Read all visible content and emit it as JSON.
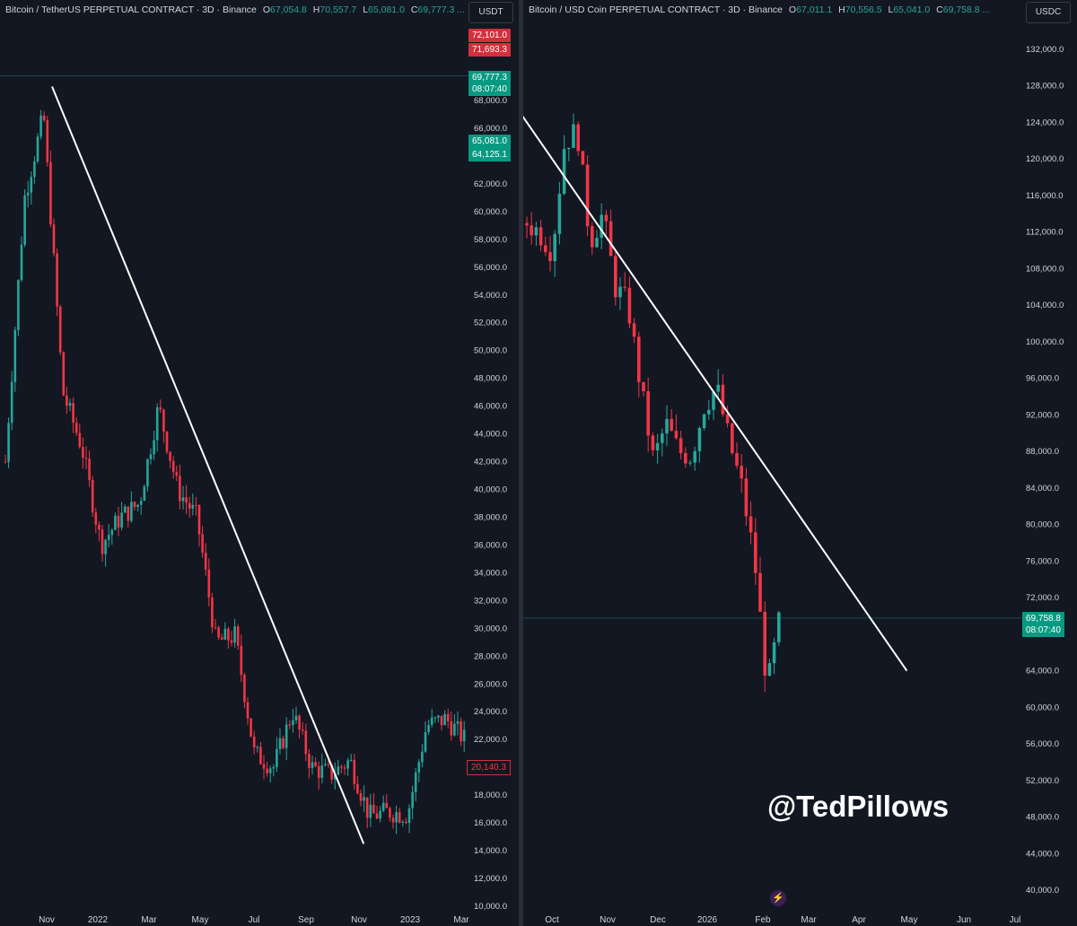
{
  "left": {
    "header": {
      "symbol": "Bitcoin / TetherUS PERPETUAL CONTRACT · 3D · Binance",
      "o_label": "O",
      "o": "67,054.8",
      "h_label": "H",
      "h": "70,557.7",
      "l_label": "L",
      "l": "65,081.0",
      "c_label": "C",
      "c": "69,777.3 ..."
    },
    "currency": "USDT",
    "price_tags": {
      "tag1": "72,101.0",
      "tag2": "71,693.3",
      "last_price": "69,777.3",
      "countdown": "08:07:40",
      "tag3": "65,081.0",
      "tag4": "64,125.1",
      "tag5": "20,140.3"
    },
    "colors": {
      "up": "#26a69a",
      "down": "#f23645"
    }
  },
  "right": {
    "header": {
      "symbol": "Bitcoin / USD Coin PERPETUAL CONTRACT · 3D · Binance",
      "o_label": "O",
      "o": "67,011.1",
      "h_label": "H",
      "h": "70,556.5",
      "l_label": "L",
      "l": "65,041.0",
      "c_label": "C",
      "c": "69,758.8 ..."
    },
    "currency": "USDC",
    "price_tags": {
      "last_price": "69,758.8",
      "countdown": "08:07:40"
    }
  },
  "watermark": "@TedPillows",
  "icons": {
    "bolt": "lightning-bolt-icon"
  },
  "chart_data": [
    {
      "type": "candlestick",
      "title": "Bitcoin / TetherUS PERPETUAL CONTRACT · 3D · Binance",
      "y_tick_labels": [
        "10,000.0",
        "12,000.0",
        "14,000.0",
        "16,000.0",
        "18,000.0",
        "20,000.0",
        "22,000.0",
        "24,000.0",
        "26,000.0",
        "28,000.0",
        "30,000.0",
        "32,000.0",
        "34,000.0",
        "36,000.0",
        "38,000.0",
        "40,000.0",
        "42,000.0",
        "44,000.0",
        "46,000.0",
        "48,000.0",
        "50,000.0",
        "52,000.0",
        "54,000.0",
        "56,000.0",
        "58,000.0",
        "60,000.0",
        "62,000.0",
        "66,000.0",
        "68,000.0"
      ],
      "x_tick_labels": [
        "Nov",
        "2022",
        "Mar",
        "May",
        "Jul",
        "Sep",
        "Nov",
        "2023",
        "Mar"
      ],
      "ylim": [
        10000,
        70000
      ],
      "trendline": {
        "from": [
          "Nov 2021",
          69000
        ],
        "to": [
          "Nov 2022",
          14500
        ]
      },
      "approx_path": [
        [
          "Oct 2021",
          42000
        ],
        [
          "Oct 2021",
          61000
        ],
        [
          "Nov 2021",
          67000
        ],
        [
          "Dec 2021",
          47000
        ],
        [
          "Jan 2022",
          43000
        ],
        [
          "Jan 2022",
          36000
        ],
        [
          "Feb 2022",
          38000
        ],
        [
          "Mar 2022",
          39000
        ],
        [
          "Mar 2022",
          46000
        ],
        [
          "Apr 2022",
          40000
        ],
        [
          "May 2022",
          38000
        ],
        [
          "May 2022",
          29000
        ],
        [
          "Jun 2022",
          29500
        ],
        [
          "Jun 2022",
          21000
        ],
        [
          "Jul 2022",
          20000
        ],
        [
          "Aug 2022",
          24000
        ],
        [
          "Sep 2022",
          20000
        ],
        [
          "Oct 2022",
          19500
        ],
        [
          "Nov 2022",
          20500
        ],
        [
          "Nov 2022",
          16500
        ],
        [
          "Dec 2022",
          16800
        ],
        [
          "Jan 2023",
          16600
        ],
        [
          "Jan 2023",
          23000
        ],
        [
          "Feb 2023",
          23500
        ],
        [
          "Feb 2023",
          22000
        ]
      ]
    },
    {
      "type": "candlestick",
      "title": "Bitcoin / USD Coin PERPETUAL CONTRACT · 3D · Binance",
      "y_tick_labels": [
        "40,000.0",
        "44,000.0",
        "48,000.0",
        "52,000.0",
        "56,000.0",
        "60,000.0",
        "64,000.0",
        "72,000.0",
        "76,000.0",
        "80,000.0",
        "84,000.0",
        "88,000.0",
        "92,000.0",
        "96,000.0",
        "100,000.0",
        "104,000.0",
        "108,000.0",
        "112,000.0",
        "116,000.0",
        "120,000.0",
        "124,000.0",
        "128,000.0",
        "132,000.0"
      ],
      "x_tick_labels": [
        "Oct",
        "Nov",
        "Dec",
        "2026",
        "Feb",
        "Mar",
        "Apr",
        "May",
        "Jun",
        "Jul"
      ],
      "ylim": [
        40000,
        134000
      ],
      "trendline": {
        "from": [
          "Sep 2025",
          128000
        ],
        "to": [
          "May 2026",
          64000
        ]
      },
      "approx_path": [
        [
          "Sep 2025",
          113000
        ],
        [
          "Sep 2025",
          112000
        ],
        [
          "Oct 2025",
          110000
        ],
        [
          "Oct 2025",
          122000
        ],
        [
          "Oct 2025",
          123000
        ],
        [
          "Oct 2025",
          111000
        ],
        [
          "Oct 2025",
          114000
        ],
        [
          "Nov 2025",
          106000
        ],
        [
          "Nov 2025",
          104000
        ],
        [
          "Nov 2025",
          95000
        ],
        [
          "Nov 2025",
          87000
        ],
        [
          "Dec 2025",
          91000
        ],
        [
          "Dec 2025",
          88000
        ],
        [
          "Jan 2026",
          87500
        ],
        [
          "Jan 2026",
          93000
        ],
        [
          "Jan 2026",
          95000
        ],
        [
          "Jan 2026",
          89000
        ],
        [
          "Feb 2026",
          84000
        ],
        [
          "Feb 2026",
          76000
        ],
        [
          "Feb 2026",
          62000
        ],
        [
          "Feb 2026",
          69800
        ]
      ]
    }
  ]
}
